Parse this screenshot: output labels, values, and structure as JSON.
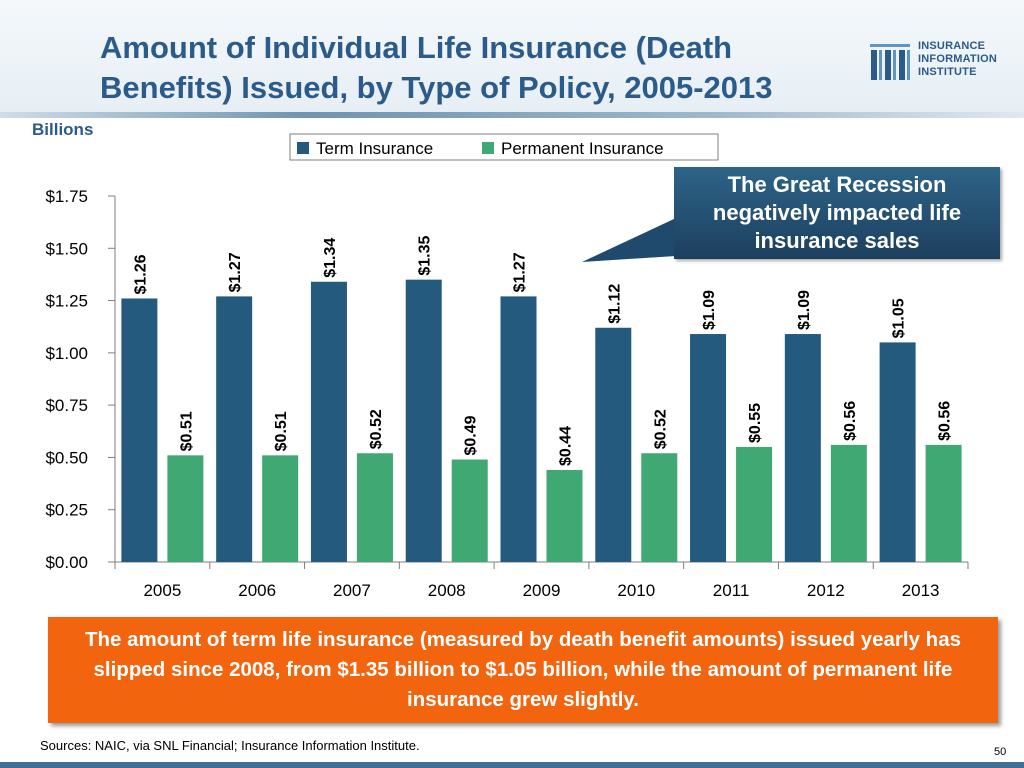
{
  "header": {
    "title": "Amount of Individual Life Insurance (Death Benefits) Issued, by Type of Policy, 2005-2013",
    "logo_lines": [
      "INSURANCE",
      "INFORMATION",
      "INSTITUTE"
    ]
  },
  "colors": {
    "term": "#255a7f",
    "permanent": "#3fa873",
    "title": "#2a5b8a",
    "callout_bg": "#1f4a6e",
    "summary_bg": "#f3640f"
  },
  "chart_data": {
    "type": "bar",
    "unit_label": "Billions",
    "categories": [
      "2005",
      "2006",
      "2007",
      "2008",
      "2009",
      "2010",
      "2011",
      "2012",
      "2013"
    ],
    "series": [
      {
        "name": "Term Insurance",
        "values": [
          1.26,
          1.27,
          1.34,
          1.35,
          1.27,
          1.12,
          1.09,
          1.09,
          1.05
        ],
        "labels": [
          "$1.26",
          "$1.27",
          "$1.34",
          "$1.35",
          "$1.27",
          "$1.12",
          "$1.09",
          "$1.09",
          "$1.05"
        ]
      },
      {
        "name": "Permanent Insurance",
        "values": [
          0.51,
          0.51,
          0.52,
          0.49,
          0.44,
          0.52,
          0.55,
          0.56,
          0.56
        ],
        "labels": [
          "$0.51",
          "$0.51",
          "$0.52",
          "$0.49",
          "$0.44",
          "$0.52",
          "$0.55",
          "$0.56",
          "$0.56"
        ]
      }
    ],
    "ylim": [
      0,
      1.75
    ],
    "yticks": [
      0,
      0.25,
      0.5,
      0.75,
      1.0,
      1.25,
      1.5,
      1.75
    ],
    "ytick_labels": [
      "$0.00",
      "$0.25",
      "$0.50",
      "$0.75",
      "$1.00",
      "$1.25",
      "$1.50",
      "$1.75"
    ],
    "legend_position": "top",
    "grid": false
  },
  "callout": {
    "text": "The Great Recession negatively impacted life insurance sales"
  },
  "summary": {
    "text": "The amount of term life insurance (measured by death benefit amounts) issued yearly has slipped since 2008, from $1.35 billion to $1.05 billion, while the amount of permanent life insurance grew slightly."
  },
  "footer": {
    "sources": "Sources: NAIC, via SNL Financial; Insurance Information Institute.",
    "page_number": "50"
  }
}
